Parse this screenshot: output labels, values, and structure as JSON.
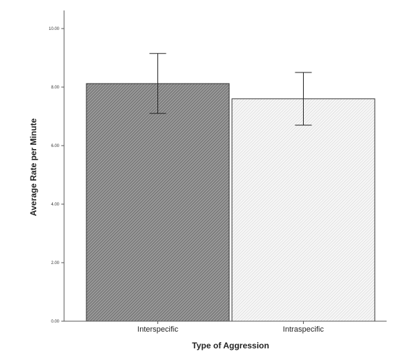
{
  "chart_data": {
    "type": "bar",
    "categories": [
      "Interspecific",
      "Intraspecific"
    ],
    "values": [
      8.12,
      7.6
    ],
    "error_low": [
      7.1,
      6.7
    ],
    "error_high": [
      9.15,
      8.5
    ],
    "xlabel": "Type of Aggression",
    "ylabel": "Average Rate per Minute",
    "ylim": [
      0,
      10
    ],
    "yticks": [
      "0.00",
      "2.00",
      "4.00",
      "6.00",
      "8.00",
      "10.00"
    ],
    "ytick_values": [
      0,
      2,
      4,
      6,
      8,
      10
    ],
    "grid": false,
    "bar_fills": [
      "dark-hatch",
      "light-hatch"
    ],
    "colors": {
      "bar_dark": "#8a8a8a",
      "bar_light": "#f2f2f2",
      "stroke": "#333333",
      "axis": "#555555"
    }
  }
}
